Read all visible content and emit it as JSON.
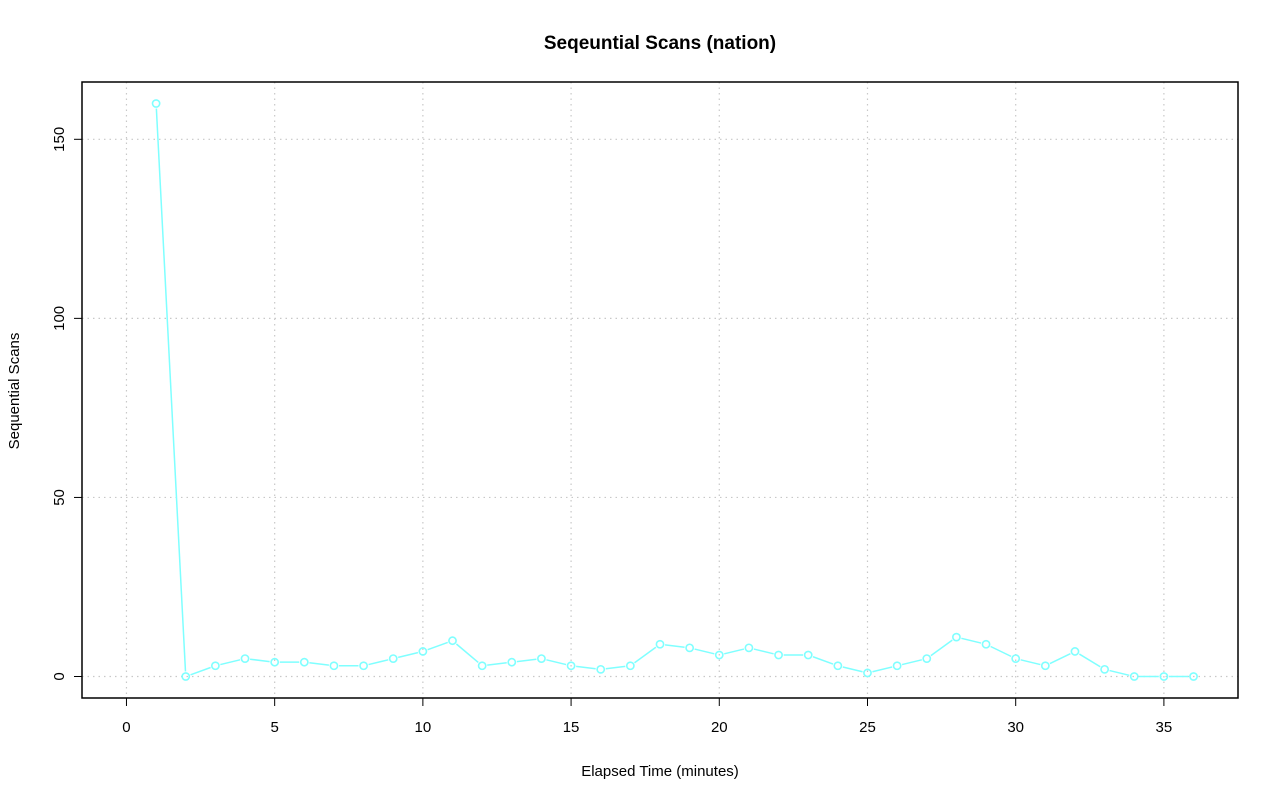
{
  "chart_data": {
    "type": "line",
    "title": "Seqeuntial Scans (nation)",
    "xlabel": "Elapsed Time (minutes)",
    "ylabel": "Sequential Scans",
    "xlim": [
      -1.5,
      37.5
    ],
    "ylim": [
      -6,
      166
    ],
    "x_ticks": [
      0,
      5,
      10,
      15,
      20,
      25,
      30,
      35
    ],
    "y_ticks": [
      0,
      50,
      100,
      150
    ],
    "x_tick_labels": [
      "0",
      "5",
      "10",
      "15",
      "20",
      "25",
      "30",
      "35"
    ],
    "y_tick_labels": [
      "0",
      "50",
      "100",
      "150"
    ],
    "grid": true,
    "series": [
      {
        "color": "#7fffff",
        "x": [
          1,
          2,
          3,
          4,
          5,
          6,
          7,
          8,
          9,
          10,
          11,
          12,
          13,
          14,
          15,
          16,
          17,
          18,
          19,
          20,
          21,
          22,
          23,
          24,
          25,
          26,
          27,
          28,
          29,
          30,
          31,
          32,
          33,
          34,
          35,
          36
        ],
        "values": [
          160,
          0,
          3,
          5,
          4,
          4,
          3,
          3,
          5,
          7,
          10,
          3,
          4,
          5,
          3,
          2,
          3,
          9,
          8,
          6,
          8,
          6,
          6,
          3,
          1,
          3,
          5,
          11,
          9,
          5,
          3,
          7,
          2,
          0,
          0,
          0
        ]
      }
    ]
  }
}
